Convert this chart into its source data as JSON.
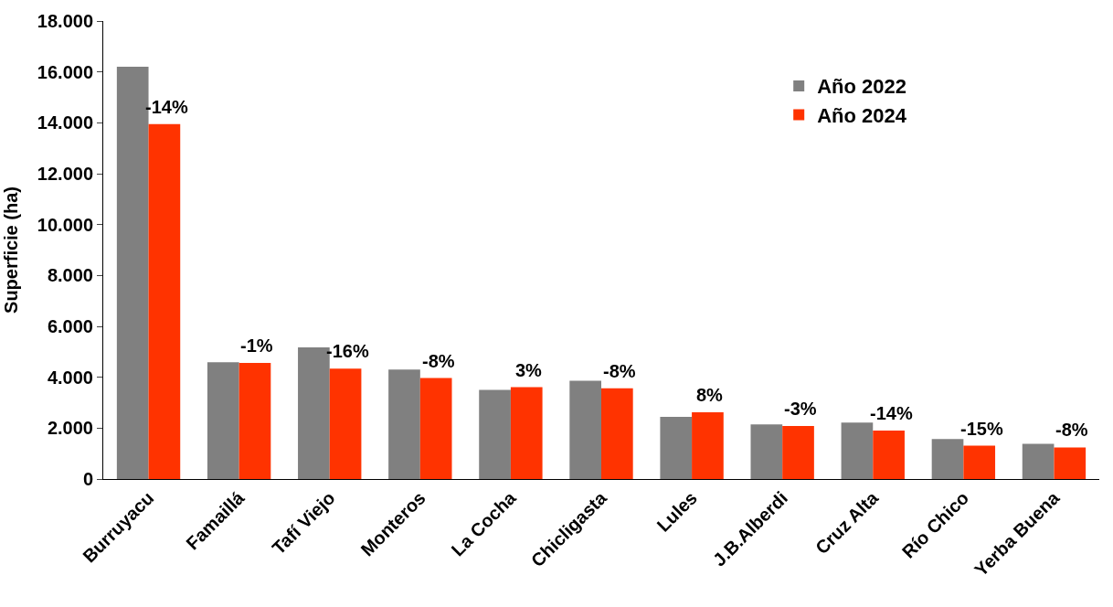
{
  "chart_data": {
    "type": "bar",
    "ylabel": "Superficie (ha)",
    "categories": [
      "Burruyacu",
      "Famaillá",
      "Tafí Viejo",
      "Monteros",
      "La Cocha",
      "Chicligasta",
      "Lules",
      "J.B.Alberdi",
      "Cruz Alta",
      "Río Chico",
      "Yerba Buena"
    ],
    "series": [
      {
        "name": "Año 2022",
        "color": "#808080",
        "values": [
          16200,
          4590,
          5170,
          4300,
          3500,
          3860,
          2440,
          2150,
          2220,
          1570,
          1380
        ]
      },
      {
        "name": "Año 2024",
        "color": "#ff3300",
        "values": [
          13950,
          4560,
          4340,
          3970,
          3610,
          3570,
          2620,
          2080,
          1900,
          1310,
          1240
        ]
      }
    ],
    "annotations": [
      {
        "text": "-14%",
        "x": "Burruyacu",
        "y": 13950
      },
      {
        "text": "-1%",
        "x": "Famaillá",
        "y": 4560
      },
      {
        "text": "-16%",
        "x": "Tafí Viejo",
        "y": 4340
      },
      {
        "text": "-8%",
        "x": "Monteros",
        "y": 3970
      },
      {
        "text": "3%",
        "x": "La Cocha",
        "y": 3610
      },
      {
        "text": "-8%",
        "x": "Chicligasta",
        "y": 3570
      },
      {
        "text": "8%",
        "x": "Lules",
        "y": 2620
      },
      {
        "text": "-3%",
        "x": "J.B.Alberdi",
        "y": 2080
      },
      {
        "text": "-14%",
        "x": "Cruz Alta",
        "y": 1900
      },
      {
        "text": "-15%",
        "x": "Río Chico",
        "y": 1310
      },
      {
        "text": "-8%",
        "x": "Yerba Buena",
        "y": 1240
      }
    ],
    "ylim": [
      0,
      18000
    ],
    "yticks": [
      {
        "value": 0,
        "label": "0"
      },
      {
        "value": 2000,
        "label": "2.000"
      },
      {
        "value": 4000,
        "label": "4.000"
      },
      {
        "value": 6000,
        "label": "6.000"
      },
      {
        "value": 8000,
        "label": "8.000"
      },
      {
        "value": 10000,
        "label": "10.000"
      },
      {
        "value": 12000,
        "label": "12.000"
      },
      {
        "value": 14000,
        "label": "14.000"
      },
      {
        "value": 16000,
        "label": "16.000"
      },
      {
        "value": 18000,
        "label": "18.000"
      }
    ],
    "legend": "top right"
  }
}
